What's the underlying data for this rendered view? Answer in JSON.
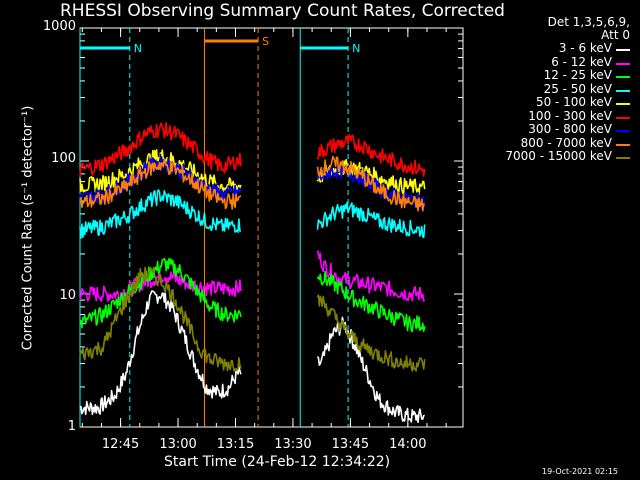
{
  "chart_data": {
    "type": "line",
    "title": "RHESSI Observing Summary Count Rates, Corrected",
    "xlabel": "Start Time (24-Feb-12 12:34:22)",
    "ylabel": "Corrected Count Rate (s⁻¹ detector⁻¹)",
    "y_scale": "log",
    "ylim": [
      1,
      1000
    ],
    "y_ticks": [
      "1",
      "10",
      "100",
      "1000"
    ],
    "x_range_minutes": [
      0,
      100
    ],
    "x_ticks": [
      {
        "label": "12:45",
        "minute": 10.6
      },
      {
        "label": "13:00",
        "minute": 25.6
      },
      {
        "label": "13:15",
        "minute": 40.6
      },
      {
        "label": "13:30",
        "minute": 55.6
      },
      {
        "label": "13:45",
        "minute": 70.6
      },
      {
        "label": "14:00",
        "minute": 85.6
      }
    ],
    "legend_header": [
      "Det 1,3,5,6,9,",
      "Att 0"
    ],
    "legend_position": "right",
    "data_gap_minutes": [
      42,
      62
    ],
    "series": [
      {
        "name": "3 - 6 keV",
        "color": "#ffffff",
        "points": [
          [
            0,
            1.4
          ],
          [
            5,
            1.4
          ],
          [
            9,
            1.7
          ],
          [
            12,
            2.5
          ],
          [
            15,
            5
          ],
          [
            18,
            9
          ],
          [
            21,
            10
          ],
          [
            24,
            8
          ],
          [
            27,
            5
          ],
          [
            30,
            3
          ],
          [
            33,
            2
          ],
          [
            36,
            1.8
          ],
          [
            39,
            2
          ],
          [
            41,
            2.5
          ],
          [
            63,
            3
          ],
          [
            66,
            5
          ],
          [
            69,
            6
          ],
          [
            72,
            4
          ],
          [
            75,
            2.5
          ],
          [
            78,
            1.6
          ],
          [
            82,
            1.3
          ],
          [
            86,
            1.2
          ],
          [
            90,
            1.2
          ]
        ]
      },
      {
        "name": "6 - 12 keV",
        "color": "#ff00ff",
        "points": [
          [
            0,
            10
          ],
          [
            10,
            10
          ],
          [
            16,
            12
          ],
          [
            22,
            14
          ],
          [
            28,
            12
          ],
          [
            34,
            11
          ],
          [
            41,
            11
          ],
          [
            62,
            20
          ],
          [
            64,
            16
          ],
          [
            68,
            13
          ],
          [
            74,
            12
          ],
          [
            80,
            11
          ],
          [
            86,
            10
          ],
          [
            90,
            10
          ]
        ]
      },
      {
        "name": "12 - 25 keV",
        "color": "#00ff00",
        "points": [
          [
            0,
            6
          ],
          [
            6,
            7
          ],
          [
            12,
            10
          ],
          [
            18,
            14
          ],
          [
            22,
            17
          ],
          [
            26,
            15
          ],
          [
            30,
            11
          ],
          [
            34,
            8
          ],
          [
            38,
            7
          ],
          [
            41,
            7
          ],
          [
            62,
            14
          ],
          [
            64,
            13
          ],
          [
            68,
            11
          ],
          [
            72,
            9
          ],
          [
            76,
            8
          ],
          [
            80,
            7
          ],
          [
            86,
            6
          ],
          [
            90,
            6
          ]
        ]
      },
      {
        "name": "25 - 50 keV",
        "color": "#00ffff",
        "points": [
          [
            0,
            30
          ],
          [
            6,
            32
          ],
          [
            12,
            38
          ],
          [
            17,
            48
          ],
          [
            21,
            55
          ],
          [
            25,
            50
          ],
          [
            29,
            42
          ],
          [
            33,
            35
          ],
          [
            37,
            32
          ],
          [
            41,
            33
          ],
          [
            62,
            33
          ],
          [
            66,
            40
          ],
          [
            70,
            44
          ],
          [
            74,
            40
          ],
          [
            78,
            35
          ],
          [
            84,
            32
          ],
          [
            90,
            30
          ]
        ]
      },
      {
        "name": "50 - 100 keV",
        "color": "#ffff00",
        "points": [
          [
            0,
            65
          ],
          [
            6,
            68
          ],
          [
            12,
            80
          ],
          [
            17,
            100
          ],
          [
            21,
            110
          ],
          [
            25,
            100
          ],
          [
            29,
            85
          ],
          [
            33,
            72
          ],
          [
            37,
            65
          ],
          [
            41,
            65
          ],
          [
            62,
            75
          ],
          [
            66,
            85
          ],
          [
            70,
            90
          ],
          [
            74,
            85
          ],
          [
            78,
            75
          ],
          [
            84,
            65
          ],
          [
            90,
            63
          ]
        ]
      },
      {
        "name": "100 - 300 keV",
        "color": "#ff0000",
        "points": [
          [
            0,
            85
          ],
          [
            6,
            95
          ],
          [
            12,
            120
          ],
          [
            17,
            160
          ],
          [
            21,
            175
          ],
          [
            25,
            160
          ],
          [
            29,
            130
          ],
          [
            33,
            105
          ],
          [
            37,
            90
          ],
          [
            41,
            100
          ],
          [
            62,
            115
          ],
          [
            66,
            130
          ],
          [
            70,
            140
          ],
          [
            74,
            130
          ],
          [
            78,
            110
          ],
          [
            84,
            95
          ],
          [
            90,
            85
          ]
        ]
      },
      {
        "name": "300 - 800 keV",
        "color": "#0000ff",
        "points": [
          [
            0,
            52
          ],
          [
            6,
            56
          ],
          [
            12,
            68
          ],
          [
            17,
            88
          ],
          [
            21,
            98
          ],
          [
            25,
            90
          ],
          [
            29,
            76
          ],
          [
            33,
            63
          ],
          [
            37,
            56
          ],
          [
            41,
            58
          ],
          [
            62,
            75
          ],
          [
            66,
            85
          ],
          [
            70,
            82
          ],
          [
            74,
            75
          ],
          [
            78,
            62
          ],
          [
            84,
            52
          ],
          [
            90,
            50
          ]
        ]
      },
      {
        "name": "800 - 7000 keV",
        "color": "#ff7f00",
        "points": [
          [
            0,
            48
          ],
          [
            6,
            52
          ],
          [
            12,
            64
          ],
          [
            17,
            84
          ],
          [
            21,
            95
          ],
          [
            25,
            86
          ],
          [
            29,
            72
          ],
          [
            33,
            58
          ],
          [
            37,
            50
          ],
          [
            41,
            50
          ],
          [
            62,
            85
          ],
          [
            66,
            95
          ],
          [
            70,
            90
          ],
          [
            74,
            75
          ],
          [
            78,
            60
          ],
          [
            84,
            50
          ],
          [
            90,
            46
          ]
        ]
      },
      {
        "name": "7000 - 15000 keV",
        "color": "#808000",
        "points": [
          [
            0,
            3.5
          ],
          [
            6,
            4
          ],
          [
            10,
            7
          ],
          [
            13,
            10
          ],
          [
            16,
            14
          ],
          [
            19,
            14
          ],
          [
            22,
            12
          ],
          [
            25,
            9
          ],
          [
            28,
            6
          ],
          [
            31,
            4
          ],
          [
            34,
            3.2
          ],
          [
            38,
            3
          ],
          [
            41,
            3
          ],
          [
            63,
            9
          ],
          [
            66,
            7
          ],
          [
            70,
            5
          ],
          [
            74,
            4
          ],
          [
            78,
            3.5
          ],
          [
            84,
            3
          ],
          [
            90,
            3
          ]
        ]
      }
    ],
    "annotations": [
      {
        "label": "N",
        "color": "#00ffff",
        "start_minute": 0,
        "end_minute": 13
      },
      {
        "label": "N",
        "color": "#00ffff",
        "start_minute": 57.5,
        "end_minute": 70
      },
      {
        "label": "S",
        "color": "#ff7f00",
        "start_minute": 32.5,
        "end_minute": 46.5
      }
    ]
  },
  "footer": {
    "timestamp": "19-Oct-2021 02:15"
  }
}
